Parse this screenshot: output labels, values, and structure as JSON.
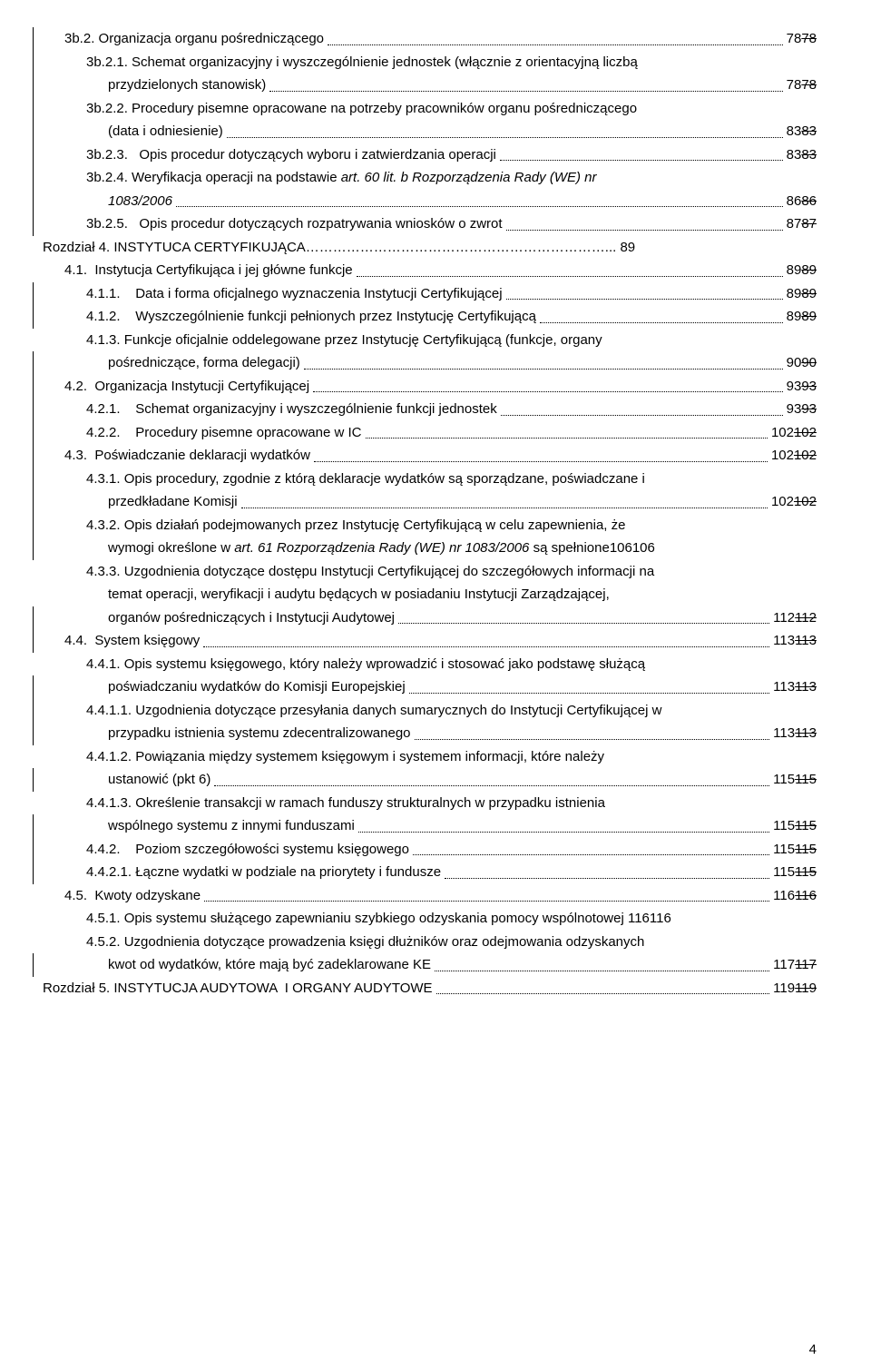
{
  "page_number": "4",
  "entries": [
    {
      "indent": 1,
      "border": true,
      "text_parts": [
        {
          "t": "3b.2. Organizacja organu pośredniczącego"
        }
      ],
      "page": "78",
      "page_strike": "78",
      "wrap": false
    },
    {
      "indent": 2,
      "border": true,
      "text_parts": [
        {
          "t": "3b.2.1.   Schemat organizacyjny i wyszczególnienie jednostek (włącznie  z orientacyjną liczbą"
        }
      ],
      "wrap": true
    },
    {
      "indent": 3,
      "border": true,
      "text_parts": [
        {
          "t": "przydzielonych stanowisk)"
        }
      ],
      "page": "78",
      "page_strike": "78",
      "wrap": false
    },
    {
      "indent": 2,
      "border": true,
      "text_parts": [
        {
          "t": "3b.2.2.   Procedury  pisemne  opracowane  na  potrzeby  pracowników  organu  pośredniczącego"
        }
      ],
      "wrap": true
    },
    {
      "indent": 3,
      "border": true,
      "text_parts": [
        {
          "t": "(data i odniesienie)"
        }
      ],
      "page": "83",
      "page_strike": "83",
      "wrap": false
    },
    {
      "indent": 2,
      "border": true,
      "text_parts": [
        {
          "t": "3b.2.3.   Opis procedur dotyczących wyboru i zatwierdzania operacji"
        }
      ],
      "page": "83",
      "page_strike": "83",
      "wrap": false
    },
    {
      "indent": 2,
      "border": true,
      "text_parts": [
        {
          "t": "3b.2.4.   Weryfikacja  operacji  na  podstawie  "
        },
        {
          "t": "art.  60  lit.  b  Rozporządzenia  Rady  (WE)    nr",
          "italic": true
        }
      ],
      "wrap": true
    },
    {
      "indent": 3,
      "border": true,
      "text_parts": [
        {
          "t": "1083/2006",
          "italic": true
        }
      ],
      "page": "86",
      "page_strike": "86",
      "wrap": false
    },
    {
      "indent": 2,
      "border": true,
      "text_parts": [
        {
          "t": "3b.2.5.   Opis procedur dotyczących rozpatrywania wniosków o zwrot"
        }
      ],
      "page": "87",
      "page_strike": "87",
      "wrap": false
    },
    {
      "indent": 0,
      "border": false,
      "text_parts": [
        {
          "t": "Rozdział 4. INSTYTUCA CERTYFIKUJĄCA…………………………………………………………... 89"
        }
      ],
      "wrap": true,
      "plain": true
    },
    {
      "indent": 1,
      "border": false,
      "text_parts": [
        {
          "t": "4.1.  Instytucja Certyfikująca i jej główne funkcje"
        }
      ],
      "page": "89",
      "page_strike": "89",
      "wrap": false
    },
    {
      "indent": 2,
      "border": true,
      "text_parts": [
        {
          "t": "4.1.1.    Data i forma oficjalnego wyznaczenia Instytucji Certyfikującej"
        }
      ],
      "page": "89",
      "page_strike": "89",
      "wrap": false
    },
    {
      "indent": 2,
      "border": true,
      "text_parts": [
        {
          "t": "4.1.2.    Wyszczególnienie funkcji pełnionych przez Instytucję Certyfikującą"
        }
      ],
      "page": "89",
      "page_strike": "89",
      "wrap": false
    },
    {
      "indent": 2,
      "border": false,
      "text_parts": [
        {
          "t": "4.1.3.    Funkcje   oficjalnie   oddelegowane   przez   Instytucję   Certyfikującą   (funkcje,   organy"
        }
      ],
      "wrap": true
    },
    {
      "indent": 3,
      "border": true,
      "text_parts": [
        {
          "t": "pośredniczące, forma delegacji)"
        }
      ],
      "page": "90",
      "page_strike": "90",
      "wrap": false
    },
    {
      "indent": 1,
      "border": true,
      "text_parts": [
        {
          "t": "4.2.  Organizacja Instytucji Certyfikującej"
        }
      ],
      "page": "93",
      "page_strike": "93",
      "wrap": false
    },
    {
      "indent": 2,
      "border": true,
      "text_parts": [
        {
          "t": "4.2.1.    Schemat organizacyjny i wyszczególnienie funkcji jednostek"
        }
      ],
      "page": "93",
      "page_strike": "93",
      "wrap": false
    },
    {
      "indent": 2,
      "border": true,
      "text_parts": [
        {
          "t": "4.2.2.    Procedury pisemne opracowane w IC"
        }
      ],
      "page": "102",
      "page_strike": "102",
      "wrap": false
    },
    {
      "indent": 1,
      "border": true,
      "text_parts": [
        {
          "t": "4.3.  Poświadczanie deklaracji wydatków"
        }
      ],
      "page": "102",
      "page_strike": "102",
      "wrap": false
    },
    {
      "indent": 2,
      "border": true,
      "text_parts": [
        {
          "t": "4.3.1.    Opis procedury, zgodnie z którą deklaracje wydatków są sporządzane, poświadczane i"
        }
      ],
      "wrap": true
    },
    {
      "indent": 3,
      "border": true,
      "text_parts": [
        {
          "t": "przedkładane Komisji"
        }
      ],
      "page": "102",
      "page_strike": "102",
      "wrap": false
    },
    {
      "indent": 2,
      "border": true,
      "text_parts": [
        {
          "t": "4.3.2.    Opis  działań  podejmowanych  przez  Instytucję  Certyfikującą  w  celu  zapewnienia,  że"
        }
      ],
      "wrap": true
    },
    {
      "indent": 3,
      "border": true,
      "text_parts": [
        {
          "t": "wymogi określone w "
        },
        {
          "t": "art. 61 Rozporządzenia Rady (WE)  nr 1083/2006",
          "italic": true
        },
        {
          "t": " są spełnione"
        }
      ],
      "page_inline": "106",
      "page_inline_strike": "106",
      "wrap": false,
      "inline_page": true
    },
    {
      "indent": 2,
      "border": false,
      "text_parts": [
        {
          "t": "4.3.3.    Uzgodnienia dotyczące dostępu Instytucji Certyfikującej do szczegółowych informacji na"
        }
      ],
      "wrap": true
    },
    {
      "indent": 3,
      "border": false,
      "text_parts": [
        {
          "t": "temat  operacji,  weryfikacji  i  audytu  będących  w  posiadaniu  Instytucji  Zarządzającej,"
        }
      ],
      "wrap": true
    },
    {
      "indent": 3,
      "border": true,
      "text_parts": [
        {
          "t": "organów pośredniczących i Instytucji Audytowej"
        }
      ],
      "page": "112",
      "page_strike": "112",
      "wrap": false
    },
    {
      "indent": 1,
      "border": true,
      "text_parts": [
        {
          "t": "4.4.  System księgowy"
        }
      ],
      "page": "113",
      "page_strike": "113",
      "wrap": false
    },
    {
      "indent": 2,
      "border": false,
      "text_parts": [
        {
          "t": "4.4.1.    Opis systemu księgowego, który należy wprowadzić i stosować jako podstawę służącą"
        }
      ],
      "wrap": true
    },
    {
      "indent": 3,
      "border": true,
      "text_parts": [
        {
          "t": "poświadczaniu wydatków do Komisji Europejskiej"
        }
      ],
      "page": "113",
      "page_strike": "113",
      "wrap": false
    },
    {
      "indent": 2,
      "border": true,
      "text_parts": [
        {
          "t": "4.4.1.1. Uzgodnienia dotyczące przesyłania danych sumarycznych do Instytucji Certyfikującej w"
        }
      ],
      "wrap": true
    },
    {
      "indent": 3,
      "border": true,
      "text_parts": [
        {
          "t": "przypadku istnienia systemu zdecentralizowanego"
        }
      ],
      "page": "113",
      "page_strike": "113",
      "wrap": false
    },
    {
      "indent": 2,
      "border": false,
      "text_parts": [
        {
          "t": "4.4.1.2. Powiązania   między   systemem   księgowym   i   systemem   informacji,   które   należy"
        }
      ],
      "wrap": true
    },
    {
      "indent": 3,
      "border": true,
      "text_parts": [
        {
          "t": "ustanowić (pkt 6)"
        }
      ],
      "page": "115",
      "page_strike": "115",
      "wrap": false
    },
    {
      "indent": 2,
      "border": false,
      "text_parts": [
        {
          "t": "4.4.1.3. Określenie   transakcji   w   ramach   funduszy   strukturalnych   w   przypadku   istnienia"
        }
      ],
      "wrap": true
    },
    {
      "indent": 3,
      "border": true,
      "text_parts": [
        {
          "t": "wspólnego systemu z innymi funduszami"
        }
      ],
      "page": "115",
      "page_strike": "115",
      "wrap": false
    },
    {
      "indent": 2,
      "border": true,
      "text_parts": [
        {
          "t": "4.4.2.    Poziom szczegółowości systemu księgowego"
        }
      ],
      "page": "115",
      "page_strike": "115",
      "wrap": false
    },
    {
      "indent": 2,
      "border": true,
      "text_parts": [
        {
          "t": "4.4.2.1. Łączne wydatki w podziale na priorytety i fundusze"
        }
      ],
      "page": "115",
      "page_strike": "115",
      "wrap": false
    },
    {
      "indent": 1,
      "border": false,
      "text_parts": [
        {
          "t": "4.5.  Kwoty odzyskane"
        }
      ],
      "page": "116",
      "page_strike": "116",
      "wrap": false
    },
    {
      "indent": 2,
      "border": false,
      "text_parts": [
        {
          "t": "4.5.1.    Opis systemu służącego zapewnianiu szybkiego odzyskania pomocy wspólnotowej "
        }
      ],
      "page_inline": "116",
      "page_inline_strike": "116",
      "wrap": false,
      "inline_page": true
    },
    {
      "indent": 2,
      "border": false,
      "text_parts": [
        {
          "t": "4.5.2.    Uzgodnienia dotyczące prowadzenia księgi dłużników oraz odejmowania  odzyskanych"
        }
      ],
      "wrap": true
    },
    {
      "indent": 3,
      "border": true,
      "text_parts": [
        {
          "t": "kwot od wydatków, które mają być zadeklarowane KE"
        }
      ],
      "page": "117",
      "page_strike": "117",
      "wrap": false
    },
    {
      "indent": 0,
      "border": false,
      "text_parts": [
        {
          "t": "Rozdział 5. INSTYTUCJA AUDYTOWA  I ORGANY AUDYTOWE"
        }
      ],
      "page": "119",
      "page_strike": "119",
      "wrap": false
    }
  ]
}
